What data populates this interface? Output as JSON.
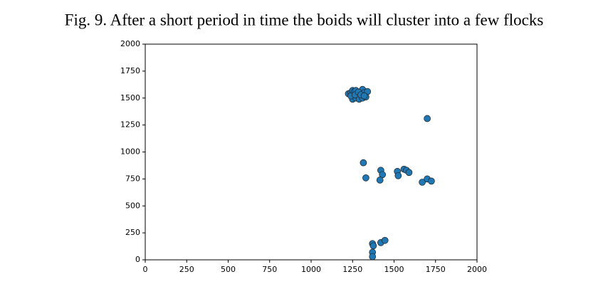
{
  "chart_data": {
    "type": "scatter",
    "title": "Fig. 9.  After a short period in time the boids will cluster into a few flocks",
    "x": [
      1225,
      1240,
      1250,
      1260,
      1270,
      1280,
      1290,
      1300,
      1310,
      1320,
      1340,
      1250,
      1270,
      1290,
      1310,
      1330,
      1240,
      1265,
      1285,
      1300,
      1320,
      1700,
      1315,
      1330,
      1420,
      1430,
      1415,
      1520,
      1525,
      1560,
      1575,
      1590,
      1670,
      1700,
      1725,
      1370,
      1375,
      1370,
      1370,
      1420,
      1445
    ],
    "values": [
      1540,
      1550,
      1570,
      1560,
      1570,
      1540,
      1520,
      1560,
      1580,
      1550,
      1560,
      1490,
      1500,
      1490,
      1500,
      1510,
      1520,
      1530,
      1555,
      1530,
      1520,
      1310,
      900,
      760,
      830,
      790,
      740,
      820,
      780,
      840,
      830,
      810,
      720,
      750,
      730,
      150,
      130,
      70,
      30,
      160,
      180
    ],
    "color": "#1f77b4",
    "xlim": [
      0,
      2000
    ],
    "xticks": [
      0,
      250,
      500,
      750,
      1000,
      1250,
      1500,
      1750,
      2000
    ],
    "ylim": [
      0,
      2000
    ],
    "yticks": [
      0,
      250,
      500,
      750,
      1000,
      1250,
      1500,
      1750,
      2000
    ],
    "grid": false
  }
}
